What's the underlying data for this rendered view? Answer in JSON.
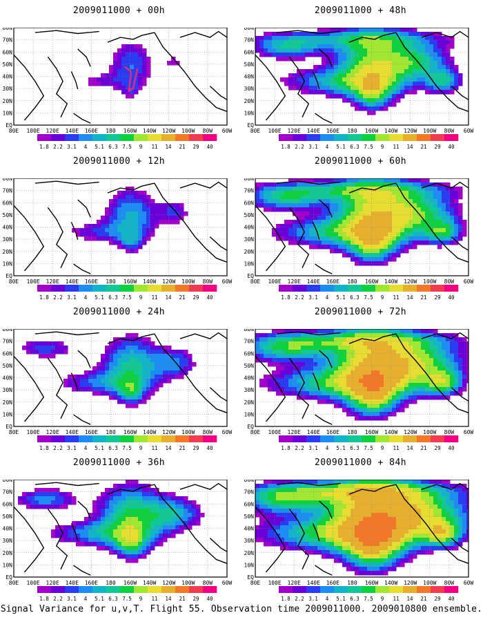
{
  "panels": [
    {
      "title": "2009011000 + 00h",
      "lead_hours": 0
    },
    {
      "title": "2009011000 + 48h",
      "lead_hours": 48
    },
    {
      "title": "2009011000 + 12h",
      "lead_hours": 12
    },
    {
      "title": "2009011000 + 60h",
      "lead_hours": 60
    },
    {
      "title": "2009011000 + 24h",
      "lead_hours": 24
    },
    {
      "title": "2009011000 + 72h",
      "lead_hours": 72
    },
    {
      "title": "2009011000 + 36h",
      "lead_hours": 36
    },
    {
      "title": "2009011000 + 84h",
      "lead_hours": 84
    }
  ],
  "lat_labels": [
    "EQ",
    "10N",
    "20N",
    "30N",
    "40N",
    "50N",
    "60N",
    "70N",
    "80N"
  ],
  "lon_labels": [
    "80E",
    "100E",
    "120E",
    "140E",
    "160E",
    "180",
    "160W",
    "140W",
    "120W",
    "100W",
    "80W",
    "60W"
  ],
  "legend": {
    "labels": [
      "1.8",
      "2.2",
      "3.1",
      "4",
      "5.1",
      "6.3",
      "7.5",
      "9",
      "11",
      "14",
      "21",
      "29",
      "40"
    ],
    "colors": [
      "#a000c8",
      "#6a00d8",
      "#2b3cf0",
      "#1e8cf0",
      "#14b4c8",
      "#14c896",
      "#10d040",
      "#a0e632",
      "#e6dc32",
      "#e6af2d",
      "#f07828",
      "#f03c50",
      "#f00082"
    ]
  },
  "caption": "Signal Variance for u,v,T. Flight 55. Observation time 2009011000. 2009010800 ensemble.",
  "colors": {
    "land_outline": "#000000",
    "grid": "#888888",
    "track": "#e6287a"
  }
}
